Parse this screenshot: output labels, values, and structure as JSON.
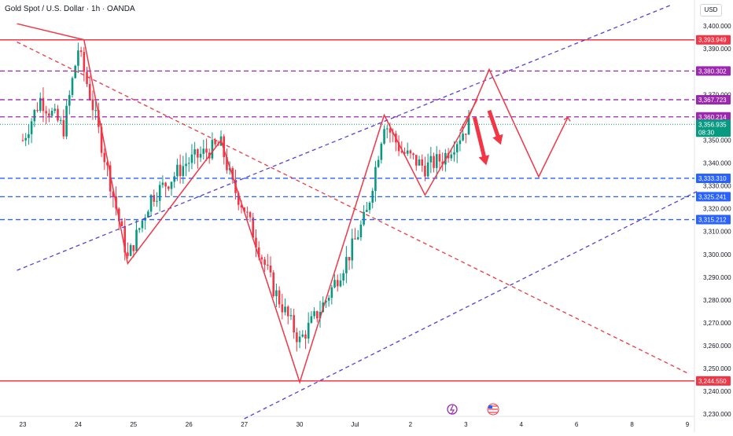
{
  "header": {
    "symbol_title": "Gold Spot / U.S. Dollar · 1h · OANDA",
    "currency_button": "USD"
  },
  "colors": {
    "up_candle": "#089981",
    "down_candle": "#f23645",
    "red_line": "#f23645",
    "purple_line": "#5b3fd6",
    "magenta_level": "#9c27b0",
    "blue_level": "#2962ff",
    "current_price_badge": "#089981"
  },
  "chart_data": {
    "type": "candlestick",
    "y_axis": {
      "range": [
        3228,
        3409
      ],
      "ticks": [
        3400,
        3390,
        3370,
        3350,
        3340,
        3330,
        3320,
        3310,
        3300,
        3290,
        3280,
        3270,
        3260,
        3250,
        3240,
        3230
      ],
      "tick_labels": [
        "3,400.000",
        "3,390.000",
        "3,370.000",
        "3,350.000",
        "3,340.000",
        "3,330.000",
        "3,320.000",
        "3,310.000",
        "3,300.000",
        "3,290.000",
        "3,280.000",
        "3,270.000",
        "3,260.000",
        "3,250.000",
        "3,240.000",
        "3,230.000"
      ]
    },
    "x_axis": {
      "tick_labels": [
        "23",
        "24",
        "25",
        "26",
        "27",
        "30",
        "Jul",
        "2",
        "3",
        "4",
        "6",
        "8",
        "9"
      ],
      "tick_index": [
        0,
        19,
        38,
        57,
        76,
        95,
        114,
        133,
        152,
        171,
        190,
        209,
        228
      ]
    },
    "horizontal_levels": [
      {
        "value": 3393.949,
        "label": "3,393.949",
        "style": "solid",
        "color": "#f23645"
      },
      {
        "value": 3380.302,
        "label": "3,380.302",
        "style": "dashed",
        "color": "#9c27b0"
      },
      {
        "value": 3367.723,
        "label": "3,367.723",
        "style": "dashed",
        "color": "#9c27b0"
      },
      {
        "value": 3360.214,
        "label": "3,360.214",
        "style": "dashed",
        "color": "#9c27b0"
      },
      {
        "value": 3333.31,
        "label": "3,333.310",
        "style": "dashed",
        "color": "#2962ff"
      },
      {
        "value": 3325.241,
        "label": "3,325.241",
        "style": "dashed",
        "color": "#2962ff"
      },
      {
        "value": 3315.212,
        "label": "3,315.212",
        "style": "dashed",
        "color": "#2962ff"
      },
      {
        "value": 3244.55,
        "label": "3,244.550",
        "style": "solid",
        "color": "#f23645"
      }
    ],
    "current_price": {
      "value": 3356.935,
      "label": "3,356.935",
      "countdown": "08:30"
    },
    "trend_lines": [
      {
        "from": [
          -2,
          3393
        ],
        "to": [
          228,
          3248
        ],
        "style": "dashed",
        "color": "#f23645"
      },
      {
        "from": [
          -2,
          3293
        ],
        "to": [
          222,
          3409
        ],
        "style": "dashed",
        "color": "#5b3fd6"
      },
      {
        "from": [
          76,
          3228
        ],
        "to": [
          232,
          3328
        ],
        "style": "dashed",
        "color": "#5b3fd6"
      }
    ],
    "zigzag_path": [
      [
        -2,
        3401
      ],
      [
        21,
        3394
      ],
      [
        36,
        3296
      ],
      [
        68,
        3350
      ],
      [
        95,
        3244
      ],
      [
        124,
        3361
      ],
      [
        138,
        3326
      ],
      [
        152,
        3357
      ],
      [
        160,
        3381
      ],
      [
        177,
        3334
      ],
      [
        187,
        3360
      ]
    ],
    "zigzag_segment_2": [
      [
        150,
        3354
      ],
      [
        156,
        3368
      ]
    ],
    "arrows": [
      {
        "from": [
          155,
          3360
        ],
        "to": [
          159,
          3339
        ]
      },
      {
        "from": [
          160,
          3363
        ],
        "to": [
          164,
          3348
        ]
      }
    ],
    "event_icons": [
      "lightning-icon",
      "us-flag-icon"
    ]
  }
}
